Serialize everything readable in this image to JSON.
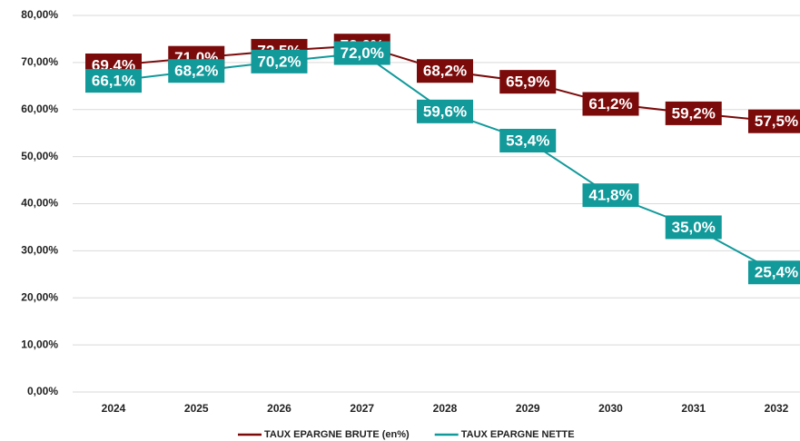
{
  "chart_data": {
    "type": "line",
    "categories": [
      "2024",
      "2025",
      "2026",
      "2027",
      "2028",
      "2029",
      "2030",
      "2031",
      "2032"
    ],
    "series": [
      {
        "name": "TAUX EPARGNE BRUTE (en%)",
        "color": "#7b0a0a",
        "values": [
          69.4,
          71.0,
          72.5,
          73.6,
          68.2,
          65.9,
          61.2,
          59.2,
          57.5
        ],
        "value_labels": [
          "69,4%",
          "71,0%",
          "72,5%",
          "73,6%",
          "68,2%",
          "65,9%",
          "61,2%",
          "59,2%",
          "57,5%"
        ]
      },
      {
        "name": "TAUX EPARGNE NETTE",
        "color": "#12999a",
        "values": [
          66.1,
          68.2,
          70.2,
          72.0,
          59.6,
          53.4,
          41.8,
          35.0,
          25.4
        ],
        "value_labels": [
          "66,1%",
          "68,2%",
          "70,2%",
          "72,0%",
          "59,6%",
          "53,4%",
          "41,8%",
          "35,0%",
          "25,4%"
        ]
      }
    ],
    "ylim": [
      0,
      80
    ],
    "yticks": [
      {
        "value": 0,
        "label": "0,00%"
      },
      {
        "value": 10,
        "label": "10,00%"
      },
      {
        "value": 20,
        "label": "20,00%"
      },
      {
        "value": 30,
        "label": "30,00%"
      },
      {
        "value": 40,
        "label": "40,00%"
      },
      {
        "value": 50,
        "label": "50,00%"
      },
      {
        "value": 60,
        "label": "60,00%"
      },
      {
        "value": 70,
        "label": "70,00%"
      },
      {
        "value": 80,
        "label": "80,00%"
      }
    ],
    "grid": true,
    "legend": "bottom"
  }
}
